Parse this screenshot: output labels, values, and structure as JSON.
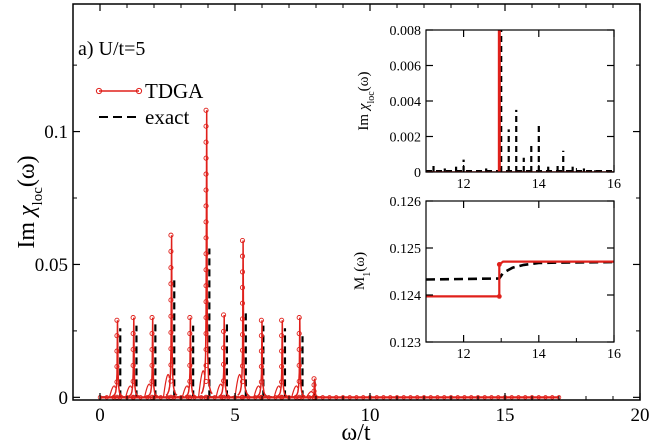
{
  "chart_data": [
    {
      "type": "line",
      "panel_label": "a) U/t=5",
      "xlabel": "ω/t",
      "ylabel_prefix": "Im ",
      "ylabel_chi": "χ",
      "ylabel_sub": "loc",
      "ylabel_suffix": "(ω)",
      "xlim": [
        -1,
        20
      ],
      "ylim": [
        -0.001,
        0.148
      ],
      "x_ticks": [
        0,
        5,
        10,
        15,
        20
      ],
      "x_tick_labels": [
        "0",
        "5",
        "10",
        "15",
        "20"
      ],
      "y_ticks": [
        0,
        0.05,
        0.1
      ],
      "y_tick_labels": [
        "0",
        "0.05",
        "0.1"
      ],
      "legend": [
        {
          "name": "TDGA",
          "color": "#e0201b",
          "style": "solid-circles"
        },
        {
          "name": "exact",
          "color": "#000000",
          "style": "dashed"
        }
      ],
      "series": [
        {
          "name": "TDGA",
          "color": "#e0201b",
          "peaks_x": [
            0.65,
            1.25,
            1.95,
            2.65,
            3.35,
            3.95,
            4.6,
            5.3,
            6.0,
            6.75,
            7.4,
            7.95
          ],
          "peaks_y": [
            0.029,
            0.03,
            0.03,
            0.061,
            0.03,
            0.108,
            0.031,
            0.059,
            0.029,
            0.029,
            0.03,
            0.007
          ],
          "sidebands_y": [
            0.006,
            0.006,
            0.007,
            0.012,
            0.006,
            0.014,
            0.007,
            0.012,
            0.006,
            0.006,
            0.006,
            0.003
          ]
        },
        {
          "name": "exact",
          "color": "#000000",
          "peaks_x": [
            0.75,
            1.35,
            2.05,
            2.75,
            3.45,
            4.05,
            4.7,
            5.4,
            6.05,
            6.85,
            7.5,
            7.95
          ],
          "peaks_y": [
            0.026,
            0.027,
            0.028,
            0.044,
            0.027,
            0.056,
            0.028,
            0.033,
            0.027,
            0.026,
            0.023,
            0.006
          ]
        }
      ]
    },
    {
      "type": "line",
      "title": "inset-top",
      "ylabel_prefix": "Im ",
      "ylabel_chi": "χ",
      "ylabel_sub": "loc",
      "ylabel_suffix": "(ω)",
      "xlim": [
        11,
        16
      ],
      "ylim": [
        0,
        0.008
      ],
      "x_ticks": [
        12,
        14,
        16
      ],
      "x_tick_labels": [
        "12",
        "14",
        "16"
      ],
      "y_ticks": [
        0,
        0.002,
        0.004,
        0.006,
        0.008
      ],
      "y_tick_labels": [
        "0",
        "0.002",
        "0.004",
        "0.006",
        "0.008"
      ],
      "series": [
        {
          "name": "TDGA",
          "color": "#e0201b",
          "x": [
            12.95
          ],
          "y": [
            0.008
          ]
        },
        {
          "name": "exact",
          "color": "#000000",
          "x": [
            11.2,
            11.5,
            11.8,
            12.0,
            12.6,
            13.0,
            13.2,
            13.4,
            13.6,
            13.8,
            14.0,
            14.25,
            14.5,
            14.65,
            14.9,
            15.2,
            15.5
          ],
          "y": [
            0.0004,
            0.0002,
            0.0003,
            0.0007,
            0.0002,
            0.008,
            0.0024,
            0.0035,
            0.0008,
            0.0015,
            0.0028,
            0.0003,
            0.0004,
            0.0012,
            0.0003,
            0.0002,
            0.0001
          ]
        }
      ]
    },
    {
      "type": "line",
      "title": "inset-bottom",
      "ylabel_main": "M",
      "ylabel_sub": "1",
      "ylabel_suffix": "(ω)",
      "xlim": [
        11,
        16
      ],
      "ylim": [
        0.123,
        0.126
      ],
      "x_ticks": [
        12,
        14,
        16
      ],
      "x_tick_labels": [
        "12",
        "14",
        "16"
      ],
      "y_ticks": [
        0.123,
        0.124,
        0.125,
        0.126
      ],
      "y_tick_labels": [
        "0.123",
        "0.124",
        "0.125",
        "0.126"
      ],
      "series": [
        {
          "name": "TDGA",
          "color": "#e0201b",
          "x": [
            11,
            12.95,
            12.95,
            13.05,
            16
          ],
          "y": [
            0.12397,
            0.12397,
            0.12465,
            0.12471,
            0.12471
          ]
        },
        {
          "name": "exact",
          "color": "#000000",
          "x": [
            11,
            12.95,
            13.05,
            13.3,
            13.6,
            14.0,
            14.5,
            16
          ],
          "y": [
            0.12433,
            0.12435,
            0.12447,
            0.12458,
            0.12464,
            0.12468,
            0.12469,
            0.1247
          ]
        }
      ]
    }
  ]
}
